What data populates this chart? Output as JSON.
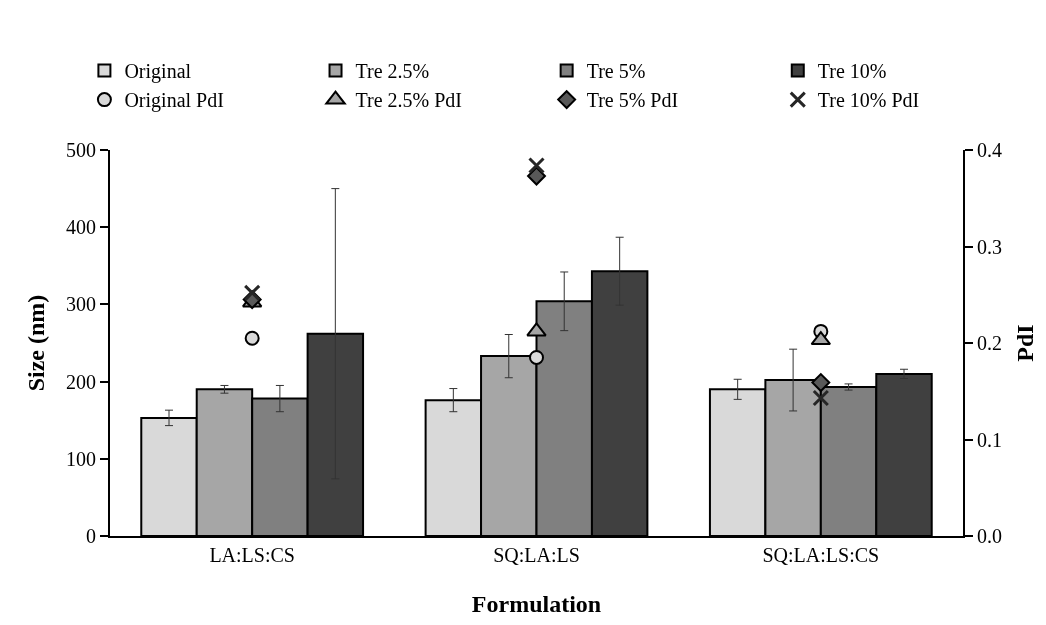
{
  "chart_data": {
    "type": "bar",
    "xlabel": "Formulation",
    "ylabel": "Size (nm)",
    "y2label": "PdI",
    "categories": [
      "LA:LS:CS",
      "SQ:LA:LS",
      "SQ:LA:LS:CS"
    ],
    "series": [
      {
        "name": "Original",
        "color": "#d9d9d9",
        "values": [
          153,
          176,
          190
        ],
        "errors": [
          10,
          15,
          13
        ]
      },
      {
        "name": "Tre 2.5%",
        "color": "#a6a6a6",
        "values": [
          190,
          233,
          202
        ],
        "errors": [
          5,
          28,
          40
        ]
      },
      {
        "name": "Tre 5%",
        "color": "#808080",
        "values": [
          178,
          304,
          193
        ],
        "errors": [
          17,
          38,
          4
        ]
      },
      {
        "name": "Tre 10%",
        "color": "#404040",
        "values": [
          262,
          343,
          210
        ],
        "errors": [
          188,
          44,
          6
        ]
      },
      {
        "name": "Original PdI",
        "type": "scatter",
        "axis": "y2",
        "marker": "circle",
        "color": "#d9d9d9",
        "values": [
          0.205,
          0.185,
          0.212
        ]
      },
      {
        "name": "Tre 2.5% PdI",
        "type": "scatter",
        "axis": "y2",
        "marker": "triangle",
        "color": "#a6a6a6",
        "values": [
          0.242,
          0.212,
          0.203
        ]
      },
      {
        "name": "Tre 5% PdI",
        "type": "scatter",
        "axis": "y2",
        "marker": "diamond",
        "color": "#595959",
        "values": [
          0.245,
          0.373,
          0.159
        ]
      },
      {
        "name": "Tre 10% PdI",
        "type": "scatter",
        "axis": "y2",
        "marker": "cross",
        "color": "#262626",
        "values": [
          0.252,
          0.384,
          0.143
        ]
      }
    ],
    "ylim": [
      0,
      500
    ],
    "yticks": [
      0,
      100,
      200,
      300,
      400,
      500
    ],
    "y2lim": [
      0,
      0.4
    ],
    "y2ticks": [
      {
        "value": 0,
        "label": "0.0"
      },
      0.1,
      0.2,
      0.3,
      0.4
    ],
    "legend": "top"
  }
}
